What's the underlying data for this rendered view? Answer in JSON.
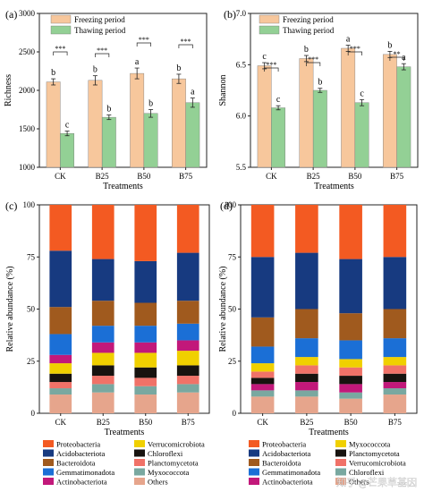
{
  "panels": {
    "a": {
      "letter": "(a)"
    },
    "b": {
      "letter": "(b)"
    },
    "c": {
      "letter": "(c)"
    },
    "d": {
      "letter": "(d)"
    }
  },
  "watermark": "知乎 @芒果草基因",
  "chart_data": [
    {
      "id": "a",
      "type": "bar",
      "ylabel": "Richness",
      "xlabel": "Treatments",
      "categories": [
        "CK",
        "B25",
        "B50",
        "B75"
      ],
      "ylim": [
        1000,
        3000
      ],
      "yticks": [
        1000,
        1500,
        2000,
        2500,
        3000
      ],
      "series": [
        {
          "name": "Freezing period",
          "color": "#f7c79c",
          "values": [
            2110,
            2130,
            2220,
            2150
          ],
          "errors": [
            40,
            60,
            70,
            60
          ],
          "letters": [
            "b",
            "b",
            "a",
            "b"
          ]
        },
        {
          "name": "Thawing period",
          "color": "#93d095",
          "values": [
            1440,
            1650,
            1700,
            1840
          ],
          "errors": [
            30,
            30,
            50,
            60
          ],
          "letters": [
            "c",
            "b",
            "b",
            "a"
          ]
        }
      ],
      "significance": [
        "***",
        "***",
        "***",
        "***"
      ]
    },
    {
      "id": "b",
      "type": "bar",
      "ylabel": "Shannon",
      "xlabel": "Treatments",
      "categories": [
        "CK",
        "B25",
        "B50",
        "B75"
      ],
      "ylim": [
        5.5,
        7.0
      ],
      "yticks": [
        5.5,
        6.0,
        6.5,
        7.0
      ],
      "series": [
        {
          "name": "Freezing period",
          "color": "#f7c79c",
          "values": [
            6.49,
            6.56,
            6.66,
            6.6
          ],
          "errors": [
            0.03,
            0.03,
            0.03,
            0.03
          ],
          "letters": [
            "c",
            "b",
            "a",
            "b"
          ]
        },
        {
          "name": "Thawing period",
          "color": "#93d095",
          "values": [
            6.08,
            6.25,
            6.13,
            6.48
          ],
          "errors": [
            0.02,
            0.02,
            0.03,
            0.03
          ],
          "letters": [
            "c",
            "b",
            "c",
            "a"
          ]
        }
      ],
      "significance": [
        "***",
        "***",
        "***",
        "**"
      ]
    },
    {
      "id": "c",
      "type": "bar",
      "stacked": true,
      "ylabel": "Relative abundance (%)",
      "xlabel": "Treatments",
      "categories": [
        "CK",
        "B25",
        "B50",
        "B75"
      ],
      "ylim": [
        0,
        100
      ],
      "yticks": [
        0,
        25,
        50,
        75,
        100
      ],
      "series": [
        {
          "name": "Others",
          "color": "#e6a58c",
          "values": [
            9,
            10,
            9,
            10
          ]
        },
        {
          "name": "Myxococcota",
          "color": "#79a8a0",
          "values": [
            3,
            4,
            4,
            4
          ]
        },
        {
          "name": "Planctomycetota",
          "color": "#f07268",
          "values": [
            3,
            4,
            4,
            4
          ]
        },
        {
          "name": "Chloroflexi",
          "color": "#17130f",
          "values": [
            4,
            5,
            5,
            5
          ]
        },
        {
          "name": "Verrucomicrobiota",
          "color": "#f0d000",
          "values": [
            5,
            6,
            7,
            7
          ]
        },
        {
          "name": "Actinobacteriota",
          "color": "#c2187a",
          "values": [
            4,
            5,
            5,
            5
          ]
        },
        {
          "name": "Gemmatimonadota",
          "color": "#1b6fd6",
          "values": [
            10,
            8,
            8,
            8
          ]
        },
        {
          "name": "Bacteroidota",
          "color": "#a05a1e",
          "values": [
            13,
            12,
            11,
            11
          ]
        },
        {
          "name": "Acidobacteriota",
          "color": "#173a80",
          "values": [
            27,
            20,
            20,
            23
          ]
        },
        {
          "name": "Proteobacteria",
          "color": "#f35a22",
          "values": [
            22,
            26,
            27,
            23
          ]
        }
      ]
    },
    {
      "id": "d",
      "type": "bar",
      "stacked": true,
      "ylabel": "Relative abundance (%)",
      "xlabel": "Treatments",
      "categories": [
        "CK",
        "B25",
        "B50",
        "B75"
      ],
      "ylim": [
        0,
        100
      ],
      "yticks": [
        0,
        25,
        50,
        75,
        100
      ],
      "series": [
        {
          "name": "Others",
          "color": "#e6a58c",
          "values": [
            8,
            8,
            7,
            9
          ]
        },
        {
          "name": "Chloroflexi",
          "color": "#79a8a0",
          "values": [
            3,
            3,
            3,
            3
          ]
        },
        {
          "name": "Actinobacteriota",
          "color": "#c2187a",
          "values": [
            3,
            4,
            4,
            3
          ]
        },
        {
          "name": "Planctomycetota",
          "color": "#17130f",
          "values": [
            3,
            4,
            4,
            4
          ]
        },
        {
          "name": "Verrucomicrobiota",
          "color": "#f07268",
          "values": [
            3,
            4,
            4,
            4
          ]
        },
        {
          "name": "Myxococcota",
          "color": "#f0d000",
          "values": [
            4,
            4,
            4,
            4
          ]
        },
        {
          "name": "Gemmatimonadota",
          "color": "#1b6fd6",
          "values": [
            8,
            9,
            9,
            9
          ]
        },
        {
          "name": "Bacteroidota",
          "color": "#a05a1e",
          "values": [
            14,
            14,
            13,
            14
          ]
        },
        {
          "name": "Acidobacteriota",
          "color": "#173a80",
          "values": [
            29,
            27,
            26,
            25
          ]
        },
        {
          "name": "Proteobacteria",
          "color": "#f35a22",
          "values": [
            25,
            23,
            26,
            25
          ]
        }
      ]
    }
  ],
  "legends": {
    "c": [
      {
        "label": "Proteobacteria",
        "color": "#f35a22"
      },
      {
        "label": "Verrucomicrobiota",
        "color": "#f0d000"
      },
      {
        "label": "Acidobacteriota",
        "color": "#173a80"
      },
      {
        "label": "Chloroflexi",
        "color": "#17130f"
      },
      {
        "label": "Bacteroidota",
        "color": "#a05a1e"
      },
      {
        "label": "Planctomycetota",
        "color": "#f07268"
      },
      {
        "label": "Gemmatimonadota",
        "color": "#1b6fd6"
      },
      {
        "label": "Myxococcota",
        "color": "#79a8a0"
      },
      {
        "label": "Actinobacteriota",
        "color": "#c2187a"
      },
      {
        "label": "Others",
        "color": "#e6a58c"
      }
    ],
    "d": [
      {
        "label": "Proteobacteria",
        "color": "#f35a22"
      },
      {
        "label": "Myxococcota",
        "color": "#f0d000"
      },
      {
        "label": "Acidobacteriota",
        "color": "#173a80"
      },
      {
        "label": "Planctomycetota",
        "color": "#17130f"
      },
      {
        "label": "Bacteroidota",
        "color": "#a05a1e"
      },
      {
        "label": "Verrucomicrobiota",
        "color": "#f07268"
      },
      {
        "label": "Gemmatimonadota",
        "color": "#1b6fd6"
      },
      {
        "label": "Chloroflexi",
        "color": "#79a8a0"
      },
      {
        "label": "Actinobacteriota",
        "color": "#c2187a"
      },
      {
        "label": "Others",
        "color": "#e6a58c"
      }
    ]
  }
}
